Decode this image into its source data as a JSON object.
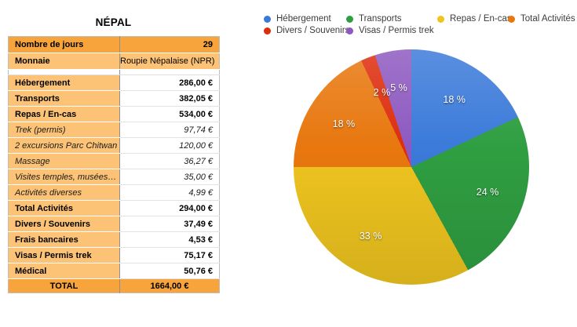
{
  "table_panel": {
    "title": "NÉPAL",
    "rows": [
      {
        "type": "header",
        "label": "Nombre de jours",
        "value": "29"
      },
      {
        "type": "subheader",
        "label": "Monnaie",
        "value": "Roupie Népalaise (NPR)"
      },
      {
        "type": "spacer",
        "label": "",
        "value": ""
      },
      {
        "type": "category",
        "label": "Hébergement",
        "value": "286,00 €"
      },
      {
        "type": "category",
        "label": "Transports",
        "value": "382,05 €"
      },
      {
        "type": "category",
        "label": "Repas / En-cas",
        "value": "534,00 €"
      },
      {
        "type": "detail",
        "label": "Trek (permis)",
        "value": "97,74 €"
      },
      {
        "type": "detail",
        "label": "2 excursions Parc Chitwan",
        "value": "120,00 €"
      },
      {
        "type": "detail",
        "label": "Massage",
        "value": "36,27 €"
      },
      {
        "type": "detail",
        "label": "Visites temples, musées…",
        "value": "35,00 €"
      },
      {
        "type": "detail",
        "label": "Activités diverses",
        "value": "4,99 €"
      },
      {
        "type": "category",
        "label": "Total Activités",
        "value": "294,00 €"
      },
      {
        "type": "category",
        "label": "Divers / Souvenirs",
        "value": "37,49 €"
      },
      {
        "type": "category",
        "label": "Frais bancaires",
        "value": "4,53 €"
      },
      {
        "type": "category",
        "label": "Visas / Permis trek",
        "value": "75,17 €"
      },
      {
        "type": "category",
        "label": "Médical",
        "value": "50,76 €"
      },
      {
        "type": "total",
        "label": "TOTAL",
        "value": "1664,00 €"
      }
    ],
    "colors": {
      "header_bg": "#f8a43c",
      "row_label_bg": "#fcc377",
      "column_divider": "#8f8f8f",
      "row_border": "#e2e2e2"
    }
  },
  "chart_data": {
    "type": "pie",
    "categories": [
      "Hébergement",
      "Transports",
      "Repas / En-cas",
      "Total Activités",
      "Divers / Souvenirs",
      "Visas / Permis trek"
    ],
    "values": [
      18,
      24,
      33,
      18,
      2,
      5
    ],
    "unit": "%",
    "labels": [
      "18 %",
      "24 %",
      "33 %",
      "18 %",
      "2 %",
      "5 %"
    ],
    "colors": [
      "#3b7ad9",
      "#2f9e41",
      "#eec41f",
      "#e8770e",
      "#dd2d0d",
      "#8d59c0"
    ],
    "start_angle_deg": 0,
    "direction": "clockwise",
    "legend_position": "top",
    "legend_rows": [
      [
        0,
        1,
        2,
        3
      ],
      [
        4,
        5
      ]
    ]
  }
}
